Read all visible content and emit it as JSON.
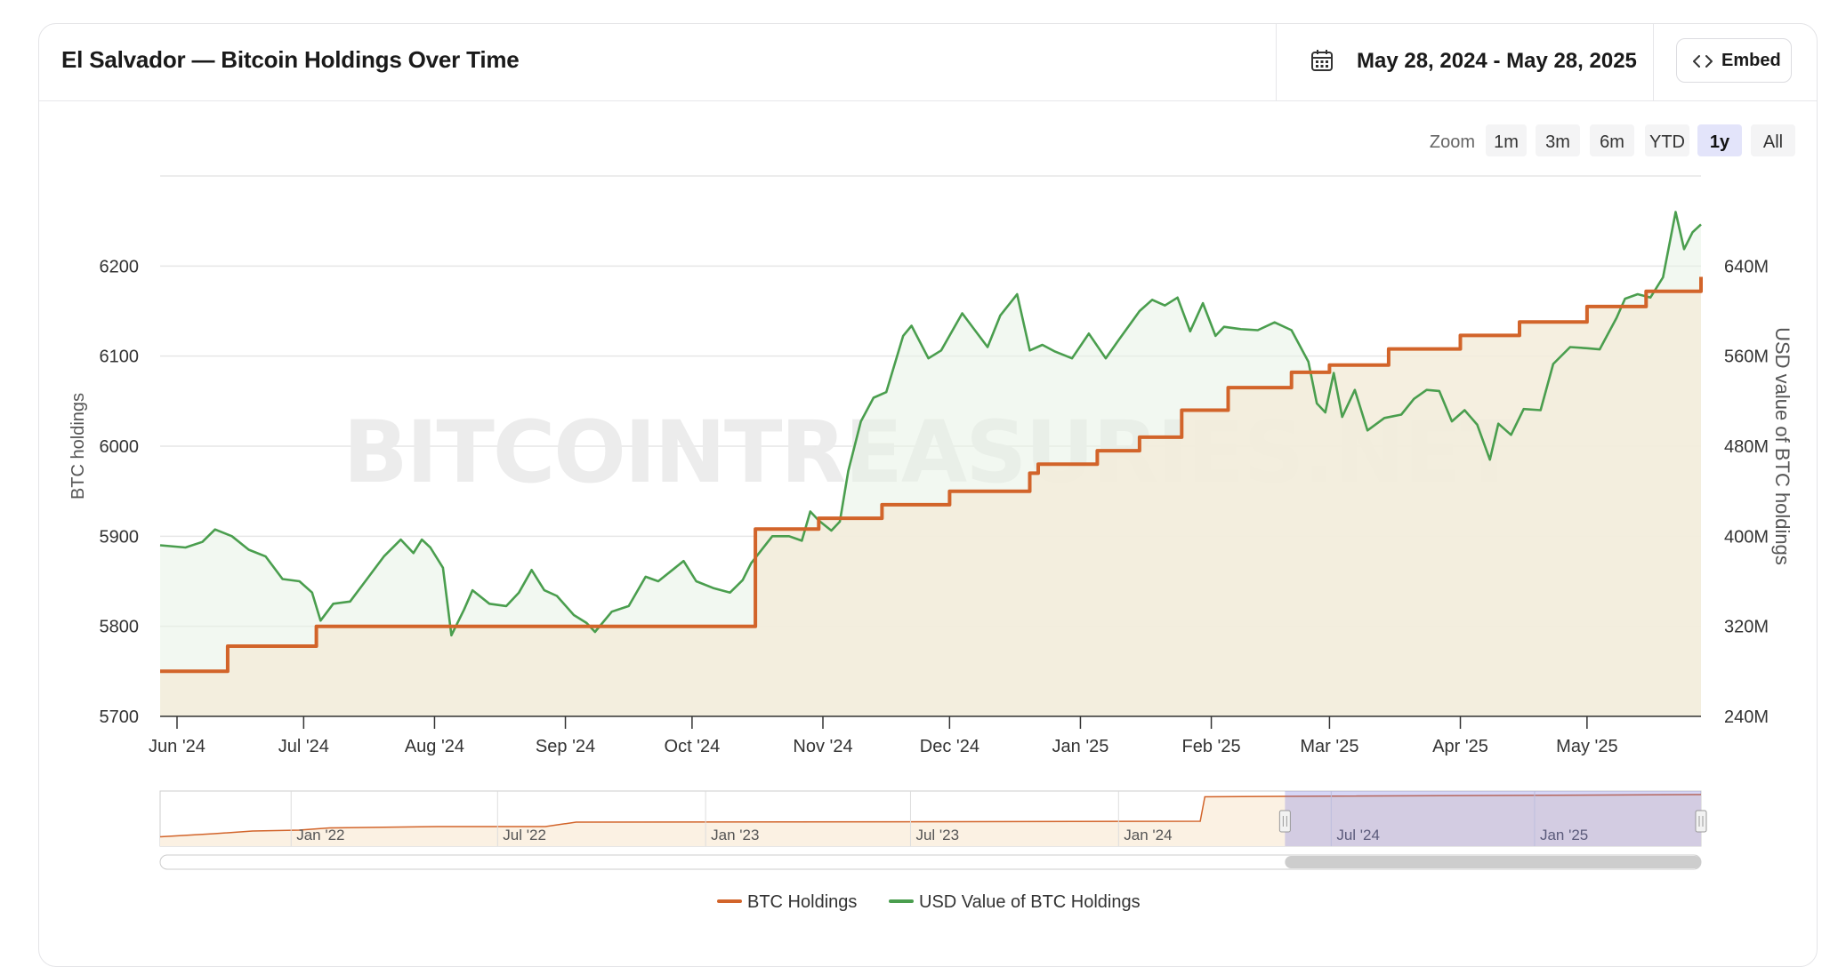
{
  "header": {
    "title": "El Salvador — Bitcoin Holdings Over Time",
    "date_range": "May 28, 2024 - May 28, 2025",
    "calendar_icon": "calendar-icon",
    "embed_icon": "code-icon",
    "embed_label": "Embed"
  },
  "zoom": {
    "label": "Zoom",
    "options": [
      "1m",
      "3m",
      "6m",
      "YTD",
      "1y",
      "All"
    ],
    "selected": "1y"
  },
  "watermark": "BITCOINTREASURIES.NET",
  "chart_data": {
    "type": "line",
    "title": "",
    "xlabel": "",
    "x_ticks": [
      "Jun '24",
      "Jul '24",
      "Aug '24",
      "Sep '24",
      "Oct '24",
      "Nov '24",
      "Dec '24",
      "Jan '25",
      "Feb '25",
      "Mar '25",
      "Apr '25",
      "May '25"
    ],
    "x_range": [
      "2024-05-28",
      "2025-05-28"
    ],
    "y_left": {
      "label": "BTC holdings",
      "range": [
        5700,
        6300
      ],
      "ticks": [
        "5700",
        "5800",
        "5900",
        "6000",
        "6100",
        "6200"
      ]
    },
    "y_right": {
      "label": "USD value of BTC holdings",
      "range": [
        240,
        720
      ],
      "unit": "M",
      "ticks": [
        "240M",
        "320M",
        "400M",
        "480M",
        "560M",
        "640M"
      ]
    },
    "grid": true,
    "legend_position": "bottom-center",
    "series": [
      {
        "name": "BTC Holdings",
        "axis": "left",
        "color": "#d2642a",
        "step": true,
        "points": [
          [
            "2024-05-28",
            5750
          ],
          [
            "2024-06-13",
            5778
          ],
          [
            "2024-07-04",
            5800
          ],
          [
            "2024-10-15",
            5800
          ],
          [
            "2024-10-16",
            5908
          ],
          [
            "2024-10-30",
            5908
          ],
          [
            "2024-10-31",
            5920
          ],
          [
            "2024-11-15",
            5935
          ],
          [
            "2024-12-01",
            5950
          ],
          [
            "2024-12-20",
            5970
          ],
          [
            "2024-12-22",
            5980
          ],
          [
            "2025-01-05",
            5995
          ],
          [
            "2025-01-15",
            6010
          ],
          [
            "2025-01-25",
            6040
          ],
          [
            "2025-02-05",
            6065
          ],
          [
            "2025-02-20",
            6082
          ],
          [
            "2025-02-27",
            6082
          ],
          [
            "2025-03-01",
            6090
          ],
          [
            "2025-03-15",
            6108
          ],
          [
            "2025-04-01",
            6123
          ],
          [
            "2025-04-15",
            6138
          ],
          [
            "2025-05-01",
            6155
          ],
          [
            "2025-05-15",
            6172
          ],
          [
            "2025-05-28",
            6188
          ]
        ]
      },
      {
        "name": "USD Value of BTC Holdings",
        "axis": "right",
        "color": "#4a9e4e",
        "points": [
          [
            "2024-05-28",
            392
          ],
          [
            "2024-06-03",
            390
          ],
          [
            "2024-06-07",
            395
          ],
          [
            "2024-06-10",
            406
          ],
          [
            "2024-06-14",
            400
          ],
          [
            "2024-06-18",
            388
          ],
          [
            "2024-06-22",
            382
          ],
          [
            "2024-06-26",
            362
          ],
          [
            "2024-06-30",
            360
          ],
          [
            "2024-07-03",
            350
          ],
          [
            "2024-07-05",
            325
          ],
          [
            "2024-07-08",
            340
          ],
          [
            "2024-07-12",
            342
          ],
          [
            "2024-07-16",
            362
          ],
          [
            "2024-07-20",
            382
          ],
          [
            "2024-07-24",
            397
          ],
          [
            "2024-07-27",
            385
          ],
          [
            "2024-07-29",
            397
          ],
          [
            "2024-07-31",
            390
          ],
          [
            "2024-08-03",
            372
          ],
          [
            "2024-08-05",
            312
          ],
          [
            "2024-08-08",
            335
          ],
          [
            "2024-08-10",
            352
          ],
          [
            "2024-08-14",
            340
          ],
          [
            "2024-08-18",
            338
          ],
          [
            "2024-08-21",
            350
          ],
          [
            "2024-08-24",
            370
          ],
          [
            "2024-08-27",
            352
          ],
          [
            "2024-08-30",
            347
          ],
          [
            "2024-09-03",
            330
          ],
          [
            "2024-09-06",
            323
          ],
          [
            "2024-09-08",
            315
          ],
          [
            "2024-09-12",
            333
          ],
          [
            "2024-09-16",
            338
          ],
          [
            "2024-09-20",
            364
          ],
          [
            "2024-09-23",
            360
          ],
          [
            "2024-09-27",
            372
          ],
          [
            "2024-09-29",
            378
          ],
          [
            "2024-10-02",
            360
          ],
          [
            "2024-10-06",
            354
          ],
          [
            "2024-10-10",
            350
          ],
          [
            "2024-10-13",
            361
          ],
          [
            "2024-10-15",
            376
          ],
          [
            "2024-10-20",
            400
          ],
          [
            "2024-10-24",
            400
          ],
          [
            "2024-10-27",
            396
          ],
          [
            "2024-10-29",
            422
          ],
          [
            "2024-10-31",
            414
          ],
          [
            "2024-11-03",
            405
          ],
          [
            "2024-11-05",
            413
          ],
          [
            "2024-11-07",
            458
          ],
          [
            "2024-11-10",
            502
          ],
          [
            "2024-11-13",
            523
          ],
          [
            "2024-11-16",
            528
          ],
          [
            "2024-11-20",
            578
          ],
          [
            "2024-11-22",
            587
          ],
          [
            "2024-11-26",
            558
          ],
          [
            "2024-11-29",
            565
          ],
          [
            "2024-12-04",
            598
          ],
          [
            "2024-12-07",
            583
          ],
          [
            "2024-12-10",
            568
          ],
          [
            "2024-12-13",
            596
          ],
          [
            "2024-12-17",
            615
          ],
          [
            "2024-12-20",
            565
          ],
          [
            "2024-12-23",
            570
          ],
          [
            "2024-12-26",
            564
          ],
          [
            "2024-12-30",
            558
          ],
          [
            "2025-01-03",
            580
          ],
          [
            "2025-01-07",
            558
          ],
          [
            "2025-01-10",
            574
          ],
          [
            "2025-01-15",
            600
          ],
          [
            "2025-01-18",
            610
          ],
          [
            "2025-01-21",
            605
          ],
          [
            "2025-01-24",
            612
          ],
          [
            "2025-01-27",
            582
          ],
          [
            "2025-01-30",
            607
          ],
          [
            "2025-02-02",
            578
          ],
          [
            "2025-02-04",
            586
          ],
          [
            "2025-02-08",
            584
          ],
          [
            "2025-02-12",
            583
          ],
          [
            "2025-02-16",
            590
          ],
          [
            "2025-02-20",
            583
          ],
          [
            "2025-02-24",
            555
          ],
          [
            "2025-02-26",
            518
          ],
          [
            "2025-02-28",
            510
          ],
          [
            "2025-03-02",
            545
          ],
          [
            "2025-03-04",
            506
          ],
          [
            "2025-03-07",
            530
          ],
          [
            "2025-03-10",
            494
          ],
          [
            "2025-03-14",
            505
          ],
          [
            "2025-03-18",
            508
          ],
          [
            "2025-03-21",
            522
          ],
          [
            "2025-03-24",
            530
          ],
          [
            "2025-03-27",
            529
          ],
          [
            "2025-03-30",
            502
          ],
          [
            "2025-04-02",
            512
          ],
          [
            "2025-04-05",
            499
          ],
          [
            "2025-04-08",
            468
          ],
          [
            "2025-04-10",
            500
          ],
          [
            "2025-04-13",
            490
          ],
          [
            "2025-04-16",
            513
          ],
          [
            "2025-04-20",
            512
          ],
          [
            "2025-04-23",
            553
          ],
          [
            "2025-04-27",
            568
          ],
          [
            "2025-05-01",
            567
          ],
          [
            "2025-05-04",
            566
          ],
          [
            "2025-05-08",
            594
          ],
          [
            "2025-05-10",
            611
          ],
          [
            "2025-05-13",
            615
          ],
          [
            "2025-05-16",
            612
          ],
          [
            "2025-05-19",
            630
          ],
          [
            "2025-05-22",
            688
          ],
          [
            "2025-05-24",
            655
          ],
          [
            "2025-05-26",
            670
          ],
          [
            "2025-05-28",
            677
          ]
        ]
      }
    ],
    "navigator": {
      "x_ticks": [
        "Jan '22",
        "Jul '22",
        "Jan '23",
        "Jul '23",
        "Jan '24",
        "Jul '24",
        "Jan '25"
      ],
      "series": [
        [
          0,
          0.05
        ],
        [
          0.035,
          0.12
        ],
        [
          0.06,
          0.18
        ],
        [
          0.09,
          0.2
        ],
        [
          0.11,
          0.25
        ],
        [
          0.18,
          0.28
        ],
        [
          0.25,
          0.28
        ],
        [
          0.27,
          0.38
        ],
        [
          0.52,
          0.39
        ],
        [
          0.675,
          0.4
        ],
        [
          0.678,
          0.95
        ],
        [
          0.73,
          0.96
        ],
        [
          1.0,
          1.0
        ]
      ],
      "selection": [
        0.73,
        1.0
      ]
    }
  }
}
